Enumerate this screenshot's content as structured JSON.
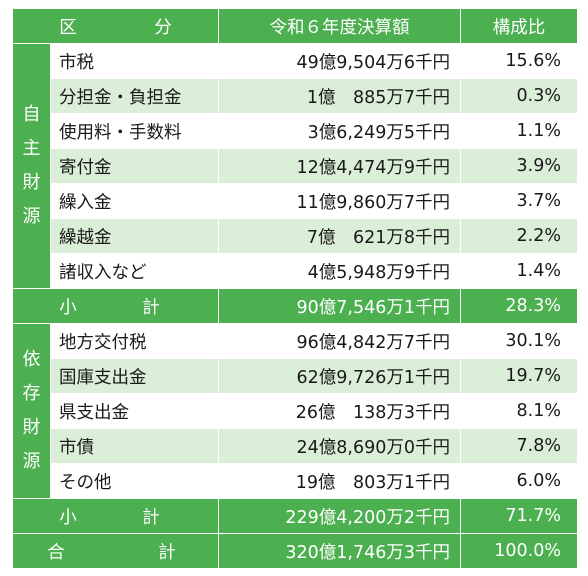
{
  "header": {
    "category": "区　分",
    "amount": "令和６年度決算額",
    "ratio": "構成比"
  },
  "groups": [
    {
      "label": [
        "自",
        "主",
        "財",
        "源"
      ],
      "rows": [
        {
          "name": "市税",
          "amount": "49億9,504万6千円",
          "ratio": "15.6%"
        },
        {
          "name": "分担金・負担金",
          "amount": "1億　885万7千円",
          "ratio": "0.3%"
        },
        {
          "name": "使用料・手数料",
          "amount": "3億6,249万5千円",
          "ratio": "1.1%"
        },
        {
          "name": "寄付金",
          "amount": "12億4,474万9千円",
          "ratio": "3.9%"
        },
        {
          "name": "繰入金",
          "amount": "11億9,860万7千円",
          "ratio": "3.7%"
        },
        {
          "name": "繰越金",
          "amount": "7億　621万8千円",
          "ratio": "2.2%"
        },
        {
          "name": "諸収入など",
          "amount": "4億5,948万9千円",
          "ratio": "1.4%"
        }
      ],
      "subtotal": {
        "label": "小　計",
        "amount": "90億7,546万1千円",
        "ratio": "28.3%"
      }
    },
    {
      "label": [
        "依",
        "存",
        "財",
        "源"
      ],
      "rows": [
        {
          "name": "地方交付税",
          "amount": "96億4,842万7千円",
          "ratio": "30.1%"
        },
        {
          "name": "国庫支出金",
          "amount": "62億9,726万1千円",
          "ratio": "19.7%"
        },
        {
          "name": "県支出金",
          "amount": "26億　138万3千円",
          "ratio": "8.1%"
        },
        {
          "name": "市債",
          "amount": "24億8,690万0千円",
          "ratio": "7.8%"
        },
        {
          "name": "その他",
          "amount": "19億　803万1千円",
          "ratio": "6.0%"
        }
      ],
      "subtotal": {
        "label": "小　計",
        "amount": "229億4,200万2千円",
        "ratio": "71.7%"
      }
    }
  ],
  "total": {
    "label": "合　計",
    "amount": "320億1,746万3千円",
    "ratio": "100.0%"
  }
}
